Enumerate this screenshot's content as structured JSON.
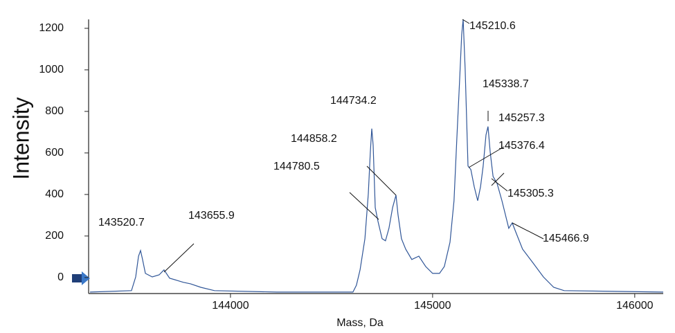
{
  "chart_data": {
    "type": "line",
    "x_label": "Mass, Da",
    "y_label": "Intensity",
    "xlim": [
      143305,
      146141
    ],
    "ylim": [
      -77,
      1243
    ],
    "xticks": [
      144000,
      145000,
      146000
    ],
    "yticks": [
      0,
      200,
      400,
      600,
      800,
      1000,
      1200
    ],
    "series": [
      {
        "color": "#2f5597",
        "x": [
          143305,
          143510,
          143531,
          143545,
          143555,
          143565,
          143579,
          143613,
          143647,
          143671,
          143699,
          143733,
          143767,
          143802,
          143853,
          143921,
          144230,
          144606,
          144623,
          144641,
          144665,
          144682,
          144692,
          144699,
          144706,
          144716,
          144730,
          144750,
          144767,
          144784,
          144802,
          144819,
          144829,
          144846,
          144867,
          144897,
          144932,
          144966,
          145000,
          145034,
          145058,
          145086,
          145106,
          145120,
          145133,
          145144,
          145151,
          145161,
          145175,
          145189,
          145206,
          145223,
          145237,
          145250,
          145264,
          145274,
          145285,
          145299,
          145319,
          145343,
          145377,
          145394,
          145411,
          145445,
          145497,
          145548,
          145599,
          145651,
          146141
        ],
        "values": [
          -70,
          -63,
          3,
          103,
          130,
          87,
          20,
          3,
          13,
          37,
          -3,
          -13,
          -23,
          -30,
          -47,
          -63,
          -70,
          -70,
          -37,
          37,
          187,
          403,
          603,
          717,
          637,
          337,
          270,
          187,
          177,
          237,
          337,
          397,
          303,
          187,
          137,
          87,
          103,
          53,
          20,
          20,
          53,
          170,
          370,
          670,
          937,
          1170,
          1243,
          1003,
          537,
          520,
          437,
          370,
          437,
          537,
          687,
          727,
          603,
          487,
          453,
          370,
          237,
          263,
          220,
          137,
          70,
          3,
          -47,
          -63,
          -70
        ]
      }
    ],
    "annotations": [
      "143520.7",
      "143655.9",
      "144734.2",
      "144858.2",
      "144780.5",
      "145210.6",
      "145338.7",
      "145257.3",
      "145376.4",
      "145305.3",
      "145466.9"
    ]
  }
}
